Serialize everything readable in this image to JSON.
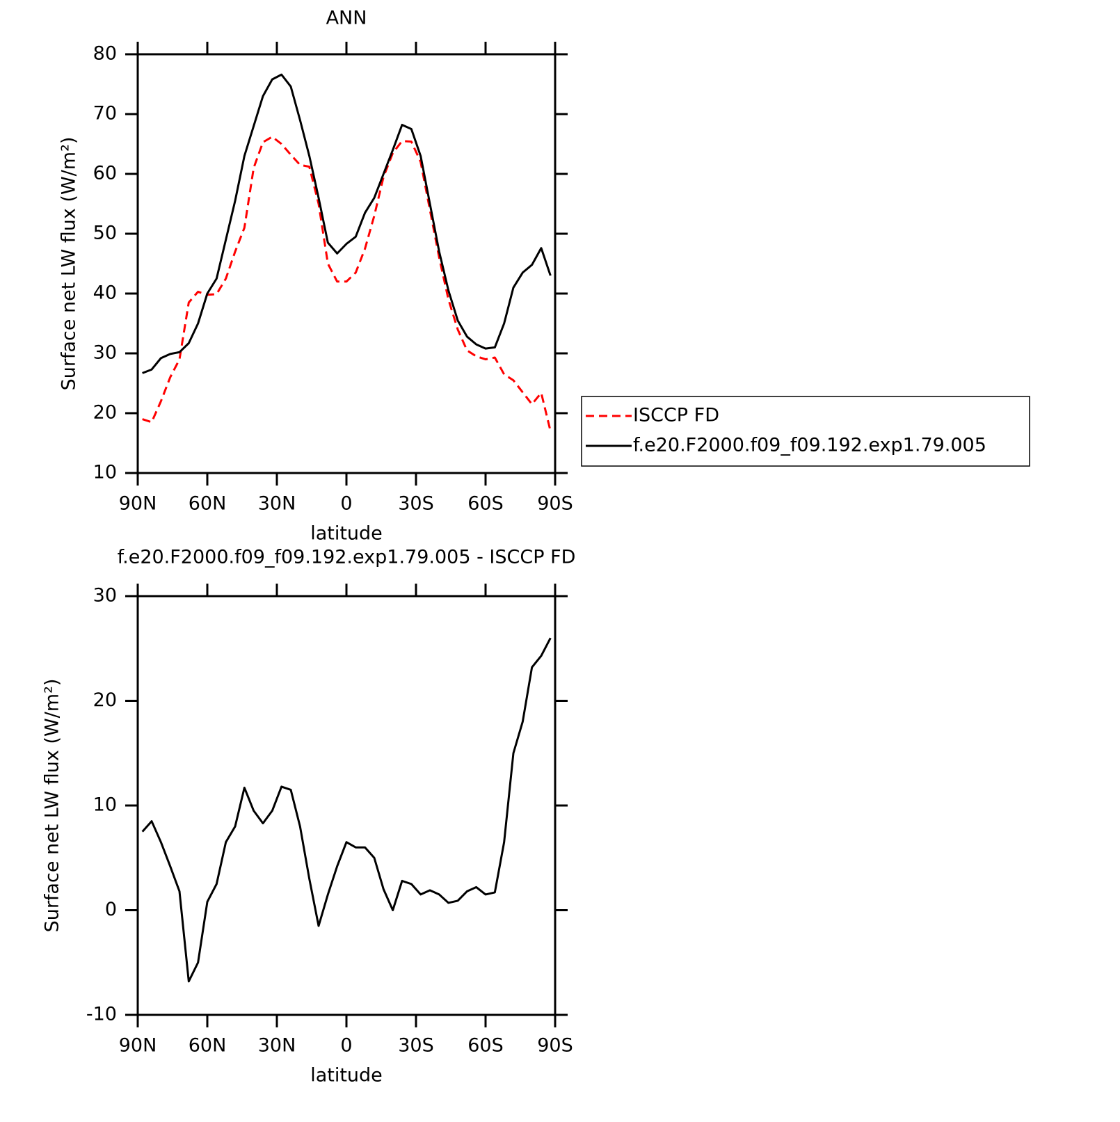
{
  "chart_data": [
    {
      "type": "line",
      "title": "ANN",
      "xlabel": "latitude",
      "ylabel": "Surface net LW flux (W/m²)",
      "x": [
        88,
        84,
        80,
        76,
        72,
        68,
        64,
        60,
        56,
        52,
        48,
        44,
        40,
        36,
        32,
        28,
        24,
        20,
        16,
        12,
        8,
        4,
        0,
        -4,
        -8,
        -12,
        -16,
        -20,
        -24,
        -28,
        -32,
        -36,
        -40,
        -44,
        -48,
        -52,
        -56,
        -60,
        -64,
        -68,
        -72,
        -76,
        -80,
        -84,
        -88
      ],
      "xlim": [
        90,
        -90
      ],
      "xticks": [
        {
          "value": 90,
          "label": "90N"
        },
        {
          "value": 60,
          "label": "60N"
        },
        {
          "value": 30,
          "label": "30N"
        },
        0,
        {
          "value": -30,
          "label": "30S"
        },
        {
          "value": -60,
          "label": "60S"
        },
        {
          "value": -90,
          "label": "90S"
        }
      ],
      "ylim": [
        10,
        80
      ],
      "yticks": [
        10,
        20,
        30,
        40,
        50,
        60,
        70,
        80
      ],
      "legend": "right",
      "series": [
        {
          "name": "ISCCP FD",
          "color": "#ff0000",
          "linestyle": "dashed",
          "values": [
            19,
            18.5,
            22,
            26,
            29,
            38.5,
            40.3,
            39.8,
            39.9,
            42.5,
            47,
            51,
            61,
            65.3,
            66.2,
            65,
            63.2,
            61.5,
            61.2,
            55,
            45,
            42,
            42,
            43.5,
            47.5,
            53,
            59.5,
            63.5,
            65.5,
            65.4,
            62,
            54,
            46,
            39,
            34,
            30.5,
            29.5,
            29,
            29.3,
            26.5,
            25.5,
            23.5,
            21.5,
            23.4,
            17
          ]
        },
        {
          "name": "f.e20.F2000.f09_f09.192.exp1.79.005",
          "color": "#000000",
          "linestyle": "solid",
          "values": [
            26.7,
            27.3,
            29.2,
            29.9,
            30.2,
            31.7,
            35,
            40,
            42.5,
            49,
            55.5,
            63,
            68,
            73,
            75.8,
            76.6,
            74.6,
            69,
            63,
            56,
            48.5,
            46.7,
            48.3,
            49.5,
            53.5,
            56,
            60,
            64,
            68.2,
            67.5,
            63,
            55,
            47,
            40.5,
            35.5,
            32.8,
            31.5,
            30.8,
            31,
            35,
            41,
            43.5,
            44.8,
            47.6,
            43
          ]
        }
      ]
    },
    {
      "type": "line",
      "title": "f.e20.F2000.f09_f09.192.exp1.79.005 - ISCCP FD",
      "xlabel": "latitude",
      "ylabel": "Surface net LW flux (W/m²)",
      "x": [
        88,
        84,
        80,
        76,
        72,
        68,
        64,
        60,
        56,
        52,
        48,
        44,
        40,
        36,
        32,
        28,
        24,
        20,
        16,
        12,
        8,
        4,
        0,
        -4,
        -8,
        -12,
        -16,
        -20,
        -24,
        -28,
        -32,
        -36,
        -40,
        -44,
        -48,
        -52,
        -56,
        -60,
        -64,
        -68,
        -72,
        -76,
        -80,
        -84,
        -88
      ],
      "xlim": [
        90,
        -90
      ],
      "xticks": [
        {
          "value": 90,
          "label": "90N"
        },
        {
          "value": 60,
          "label": "60N"
        },
        {
          "value": 30,
          "label": "30N"
        },
        0,
        {
          "value": -30,
          "label": "30S"
        },
        {
          "value": -60,
          "label": "60S"
        },
        {
          "value": -90,
          "label": "90S"
        }
      ],
      "ylim": [
        -10,
        30
      ],
      "yticks": [
        -10,
        0,
        10,
        20,
        30
      ],
      "series": [
        {
          "color": "#000000",
          "linestyle": "solid",
          "values": [
            7.5,
            8.5,
            6.5,
            4.2,
            1.8,
            -6.8,
            -5,
            0.8,
            2.5,
            6.5,
            8,
            11.7,
            9.5,
            8.3,
            9.5,
            11.8,
            11.5,
            8,
            3,
            -1.5,
            1.5,
            4.2,
            6.5,
            6,
            6,
            5,
            2,
            0,
            2.8,
            2.5,
            1.5,
            1.9,
            1.5,
            0.7,
            0.9,
            1.8,
            2.2,
            1.5,
            1.7,
            6.5,
            15,
            18,
            23.2,
            24.3,
            26
          ]
        }
      ]
    }
  ]
}
